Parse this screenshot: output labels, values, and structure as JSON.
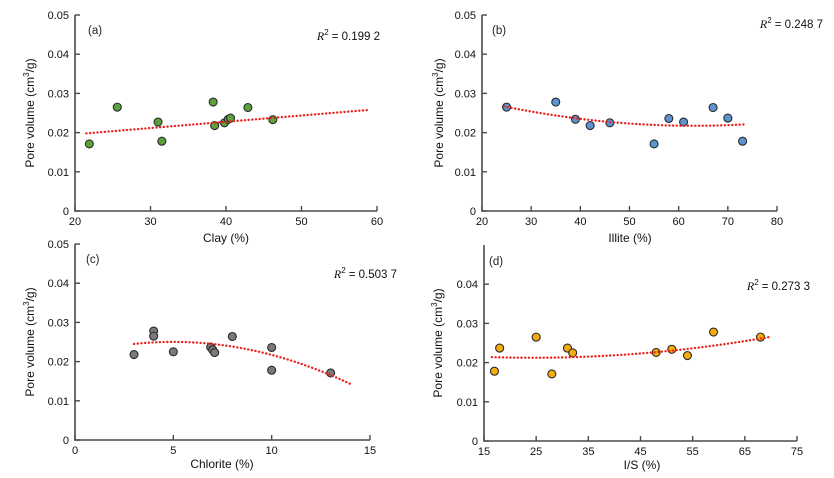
{
  "figure": {
    "background": "#ffffff",
    "axis_color": "#4a4a4a",
    "text_color": "#111111"
  },
  "chart_data": [
    {
      "id": "a",
      "type": "scatter",
      "panel_label": "(a)",
      "r2_base": "R",
      "r2_sup": "2",
      "r2_text": "= 0.199 2",
      "xlabel": "Clay (%)",
      "ylabel": "Pore volume (cm3/g)",
      "ylabel_pre": "Pore volume (cm",
      "ylabel_sup": "3",
      "ylabel_post": "/g)",
      "xlim": [
        20,
        60
      ],
      "ylim": [
        0,
        0.05
      ],
      "x_ticks": [
        20,
        30,
        40,
        50,
        60
      ],
      "x_tick_labels": [
        "20",
        "30",
        "40",
        "50",
        "60"
      ],
      "y_ticks": [
        0,
        0.01,
        0.02,
        0.03,
        0.04,
        0.05
      ],
      "y_tick_labels": [
        "0",
        "0.01",
        "0.02",
        "0.03",
        "0.04",
        "0.05"
      ],
      "point_color": "#5ba23c",
      "point_edge": "#2b2b2b",
      "trend_color": "#e8231c",
      "points": [
        [
          21.9,
          0.0171
        ],
        [
          25.6,
          0.0265
        ],
        [
          31.0,
          0.0227
        ],
        [
          31.5,
          0.0178
        ],
        [
          38.3,
          0.0278
        ],
        [
          38.5,
          0.0218
        ],
        [
          39.8,
          0.0225
        ],
        [
          40.3,
          0.0234
        ],
        [
          40.6,
          0.0237
        ],
        [
          42.9,
          0.0264
        ],
        [
          46.2,
          0.0233
        ]
      ],
      "trend_bezier": [
        [
          21.5,
          0.0198
        ],
        [
          40.25,
          0.0228
        ],
        [
          59.0,
          0.0258
        ]
      ]
    },
    {
      "id": "b",
      "type": "scatter",
      "panel_label": "(b)",
      "r2_base": "R",
      "r2_sup": "2",
      "r2_text": "= 0.248 7",
      "xlabel": "Illite (%)",
      "ylabel": "Pore volume (cm3/g)",
      "ylabel_pre": "Pore volume (cm",
      "ylabel_sup": "3",
      "ylabel_post": "/g)",
      "xlim": [
        20,
        80
      ],
      "ylim": [
        0,
        0.05
      ],
      "x_ticks": [
        20,
        30,
        40,
        50,
        60,
        70,
        80
      ],
      "x_tick_labels": [
        "20",
        "30",
        "40",
        "50",
        "60",
        "70",
        "80"
      ],
      "y_ticks": [
        0,
        0.01,
        0.02,
        0.03,
        0.04,
        0.05
      ],
      "y_tick_labels": [
        "0",
        "0.01",
        "0.02",
        "0.03",
        "0.04",
        "0.05"
      ],
      "point_color": "#5e93d1",
      "point_edge": "#2b2b2b",
      "trend_color": "#e8231c",
      "points": [
        [
          25,
          0.0265
        ],
        [
          35,
          0.0278
        ],
        [
          39,
          0.0234
        ],
        [
          42,
          0.0218
        ],
        [
          46,
          0.0225
        ],
        [
          55,
          0.0171
        ],
        [
          58,
          0.0236
        ],
        [
          61,
          0.0227
        ],
        [
          67,
          0.0264
        ],
        [
          70,
          0.0237
        ],
        [
          73,
          0.0178
        ]
      ],
      "trend_bezier": [
        [
          24.5,
          0.0267
        ],
        [
          49.0,
          0.0204
        ],
        [
          73.5,
          0.0221
        ]
      ]
    },
    {
      "id": "c",
      "type": "scatter",
      "panel_label": "(c)",
      "r2_base": "R",
      "r2_sup": "2",
      "r2_text": "= 0.503 7",
      "xlabel": "Chlorite (%)",
      "ylabel": "Pore volume (cm3/g)",
      "ylabel_pre": "Pore volume (cm",
      "ylabel_sup": "3",
      "ylabel_post": "/g)",
      "xlim": [
        0,
        15
      ],
      "ylim": [
        0,
        0.05
      ],
      "x_ticks": [
        0,
        5,
        10,
        15
      ],
      "x_tick_labels": [
        "0",
        "5",
        "10",
        "15"
      ],
      "y_ticks": [
        0,
        0.01,
        0.02,
        0.03,
        0.04,
        0.05
      ],
      "y_tick_labels": [
        "0",
        "0.01",
        "0.02",
        "0.03",
        "0.04",
        "0.05"
      ],
      "point_color": "#7a7a7a",
      "point_edge": "#2b2b2b",
      "trend_color": "#e8231c",
      "points": [
        [
          3,
          0.0218
        ],
        [
          4,
          0.0278
        ],
        [
          4,
          0.0265
        ],
        [
          5,
          0.0225
        ],
        [
          6.9,
          0.0237
        ],
        [
          7,
          0.023
        ],
        [
          7.1,
          0.0223
        ],
        [
          8,
          0.0264
        ],
        [
          10,
          0.0236
        ],
        [
          10,
          0.0178
        ],
        [
          13,
          0.0171
        ]
      ],
      "trend_bezier": [
        [
          3.0,
          0.0245
        ],
        [
          8.5,
          0.0274
        ],
        [
          14.0,
          0.0143
        ]
      ]
    },
    {
      "id": "d",
      "type": "scatter",
      "panel_label": "(d)",
      "r2_base": "R",
      "r2_sup": "2",
      "r2_text": "= 0.273 3",
      "xlabel": "I/S (%)",
      "ylabel": "Pore volume (cm3/g)",
      "ylabel_pre": "Pore volume (cm",
      "ylabel_sup": "3",
      "ylabel_post": "/g)",
      "xlim": [
        15,
        75
      ],
      "ylim": [
        0,
        0.05
      ],
      "x_ticks": [
        15,
        25,
        35,
        45,
        55,
        65,
        75
      ],
      "x_tick_labels": [
        "15",
        "25",
        "35",
        "45",
        "55",
        "65",
        "75"
      ],
      "y_ticks": [
        0,
        0.01,
        0.02,
        0.03,
        0.04
      ],
      "y_tick_labels": [
        "0",
        "0.01",
        "0.02",
        "0.03",
        "0.04"
      ],
      "point_color": "#f5ac0d",
      "point_edge": "#2b2b2b",
      "trend_color": "#e8231c",
      "points": [
        [
          17,
          0.0178
        ],
        [
          18,
          0.0237
        ],
        [
          25,
          0.0265
        ],
        [
          28,
          0.0171
        ],
        [
          31,
          0.0237
        ],
        [
          32,
          0.0225
        ],
        [
          48,
          0.0226
        ],
        [
          51,
          0.0234
        ],
        [
          54,
          0.0218
        ],
        [
          59,
          0.0278
        ],
        [
          68,
          0.0265
        ]
      ],
      "trend_bezier": [
        [
          16.5,
          0.0214
        ],
        [
          43.25,
          0.0203
        ],
        [
          70.0,
          0.0266
        ]
      ]
    }
  ]
}
